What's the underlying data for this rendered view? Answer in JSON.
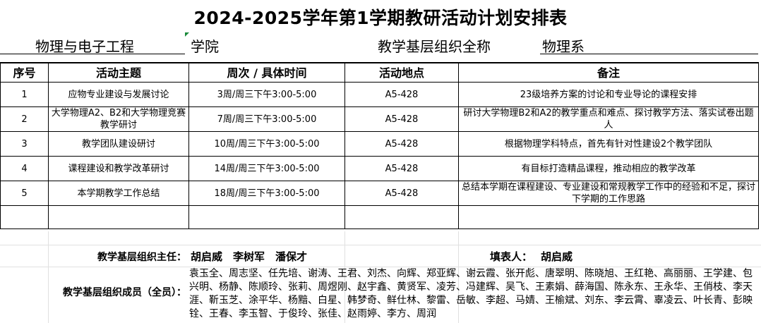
{
  "title": "2024-2025学年第1学期教研活动计划安排表",
  "college_name": "物理与电子工程",
  "college_suffix": "学院",
  "org_label": "教学基层组织全称",
  "org_name": "物理系",
  "table": {
    "headers": [
      "序号",
      "活动主题",
      "周次 / 具体时间",
      "活动地点",
      "备注"
    ],
    "rows": [
      {
        "no": "1",
        "topic": "应物专业建设与发展讨论",
        "time": "3周/周三下午3:00-5:00",
        "place": "A5-428",
        "note": "23级培养方案的讨论和专业导论的课程安排"
      },
      {
        "no": "2",
        "topic": "大学物理A2、B2和大学物理竞赛教学研讨",
        "time": "7周/周三下午3:00-5:00",
        "place": "A5-428",
        "note": "研讨大学物理B2和A2的教学重点和难点、探讨教学方法、落实试卷出题人"
      },
      {
        "no": "3",
        "topic": "教学团队建设研讨",
        "time": "10周/周三下午3:00-5:00",
        "place": "A5-428",
        "note": "根据物理学科特点，首先有针对性建设2个教学团队"
      },
      {
        "no": "4",
        "topic": "课程建设和教学改革研讨",
        "time": "14周/周三下午3:00-5:00",
        "place": "A5-428",
        "note": "有目标打造精品课程，推动相应的教学改革"
      },
      {
        "no": "5",
        "topic": "本学期教学工作总结",
        "time": "18周/周三下午3:00-5:00",
        "place": "A5-428",
        "note": "总结本学期在课程建设、专业建设和常规教学工作中的经验和不足，探讨下学期的工作思路"
      }
    ]
  },
  "director_label": "教学基层组织主任：",
  "directors": "胡启威　李树军　潘保才",
  "filler_label": "填表人：",
  "filler": "胡启威",
  "members_label": "教学基层组织成员（全员）：",
  "members": "袁玉全、周志坚、任先培、谢涛、王君、刘杰、向辉、郑亚辉、谢云霞、张开彪、唐翠明、陈晓旭、王红艳、高丽丽、王学建、包兴明、杨静、陈顺玲、张莉、周煜刚、赵宇鑫、黄贤军、凌芳、冯建辉、吴飞、王素娟、薛海国、陈永东、王永华、王俏枝、李天涯、靳玉芝、涂平华、杨黯、白星、韩梦奇、鲜仕林、黎雷、岳敏、李超、马婧、王榆斌、刘东、李云霄、辜凌云、叶长青、彭映铨、王春、李玉智、于俊玲、张佳、赵雨婷、李方、周润"
}
